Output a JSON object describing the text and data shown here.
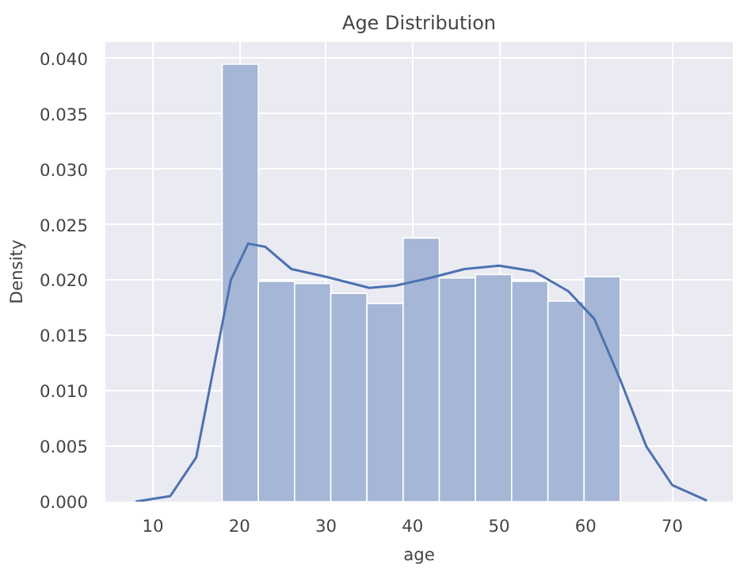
{
  "chart_data": {
    "type": "histogram",
    "title": "Age Distribution",
    "xlabel": "age",
    "ylabel": "Density",
    "xlim": [
      4.5,
      77
    ],
    "ylim": [
      0,
      0.0415
    ],
    "xticks": [
      10,
      20,
      30,
      40,
      50,
      60,
      70
    ],
    "yticks": [
      {
        "value": 0,
        "label": "0.000"
      },
      {
        "value": 0.005,
        "label": "0.005"
      },
      {
        "value": 0.01,
        "label": "0.010"
      },
      {
        "value": 0.015,
        "label": "0.015"
      },
      {
        "value": 0.02,
        "label": "0.020"
      },
      {
        "value": 0.025,
        "label": "0.025"
      },
      {
        "value": 0.03,
        "label": "0.030"
      },
      {
        "value": 0.035,
        "label": "0.035"
      },
      {
        "value": 0.04,
        "label": "0.040"
      }
    ],
    "grid": true,
    "series": [
      {
        "color": "#a6b6d6",
        "bins": [
          18,
          22.18,
          26.36,
          30.55,
          34.73,
          38.91,
          43.09,
          47.27,
          51.45,
          55.64,
          59.82,
          64
        ],
        "values": [
          0.0395,
          0.0199,
          0.0197,
          0.0188,
          0.0179,
          0.0238,
          0.0202,
          0.0205,
          0.0199,
          0.0181,
          0.0203
        ]
      },
      {
        "type": "line",
        "color": "#4c72b0",
        "x": [
          8,
          12,
          15,
          17,
          19,
          21,
          23,
          26,
          30,
          35,
          38,
          42,
          46,
          50,
          54,
          58,
          61,
          64,
          67,
          70,
          74
        ],
        "values": [
          0,
          0.0005,
          0.004,
          0.012,
          0.02,
          0.0233,
          0.023,
          0.021,
          0.0203,
          0.0193,
          0.0195,
          0.0202,
          0.021,
          0.0213,
          0.0208,
          0.019,
          0.0165,
          0.011,
          0.005,
          0.0015,
          0.0001
        ]
      }
    ]
  }
}
